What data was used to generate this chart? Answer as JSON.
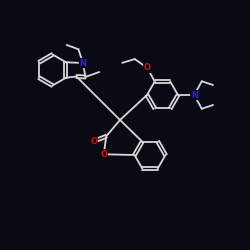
{
  "background_color": "#0a0a14",
  "bond_color": "#d8d8d8",
  "N_color": "#2222ff",
  "O_color": "#cc1111",
  "lw": 1.3,
  "dbl_off": 0.06,
  "xlim": [
    0,
    10
  ],
  "ylim": [
    0,
    10
  ]
}
